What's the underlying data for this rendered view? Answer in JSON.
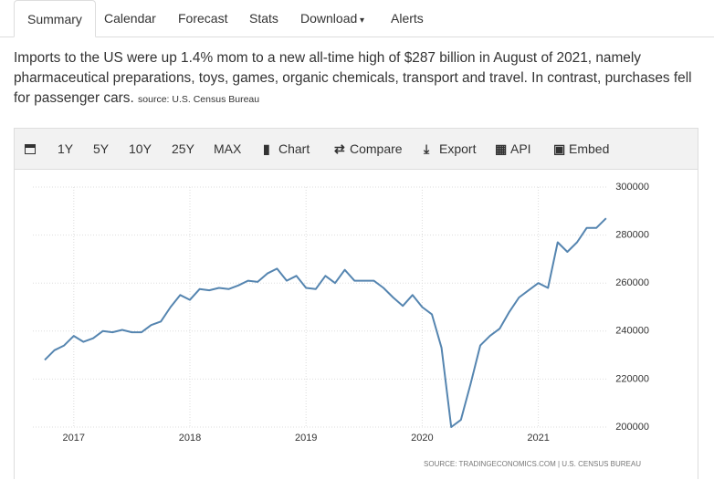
{
  "nav": {
    "tabs": [
      "Summary",
      "Calendar",
      "Forecast",
      "Stats",
      "Download",
      "Alerts"
    ]
  },
  "description": {
    "text": "Imports to the US were up 1.4% mom to a new all-time high of $287 billion in August of 2021, namely pharmaceutical preparations, toys, games, organic chemicals, transport and travel. In contrast, purchases fell for passenger cars.",
    "source": "source: U.S. Census Bureau"
  },
  "toolbar": {
    "ranges": [
      "1Y",
      "5Y",
      "10Y",
      "25Y",
      "MAX"
    ],
    "tools": [
      "Chart",
      "Compare",
      "Export",
      "API",
      "Embed"
    ]
  },
  "chart_data": {
    "type": "line",
    "categories": [
      null,
      null,
      null,
      "2017",
      null,
      null,
      null,
      null,
      null,
      null,
      null,
      null,
      null,
      null,
      null,
      "2018",
      null,
      null,
      null,
      null,
      null,
      null,
      null,
      null,
      null,
      null,
      null,
      "2019",
      null,
      null,
      null,
      null,
      null,
      null,
      null,
      null,
      null,
      null,
      null,
      "2020",
      null,
      null,
      null,
      null,
      null,
      null,
      null,
      null,
      null,
      null,
      null,
      "2021",
      null,
      null,
      null,
      null,
      null,
      null,
      null
    ],
    "series": [
      {
        "color": "#5585b0",
        "values": [
          228000,
          232000,
          234000,
          238000,
          235500,
          237000,
          240000,
          239500,
          240500,
          239500,
          239500,
          242500,
          244000,
          250000,
          255000,
          253000,
          257500,
          257000,
          258000,
          257500,
          259000,
          261000,
          260500,
          264000,
          266000,
          261000,
          263000,
          258000,
          257500,
          263000,
          260000,
          265500,
          261000,
          261000,
          261000,
          258000,
          254000,
          250500,
          255000,
          250000,
          247000,
          233000,
          200000,
          203000,
          218000,
          234000,
          238000,
          241000,
          248000,
          254000,
          257000,
          260000,
          258000,
          277000,
          273000,
          277000,
          283000,
          283000,
          287000
        ]
      }
    ],
    "ylim": [
      200000,
      300000
    ],
    "yticks": [
      200000,
      220000,
      240000,
      260000,
      280000,
      300000
    ],
    "grid": true,
    "source": "SOURCE: TRADINGECONOMICS.COM | U.S. CENSUS BUREAU"
  }
}
